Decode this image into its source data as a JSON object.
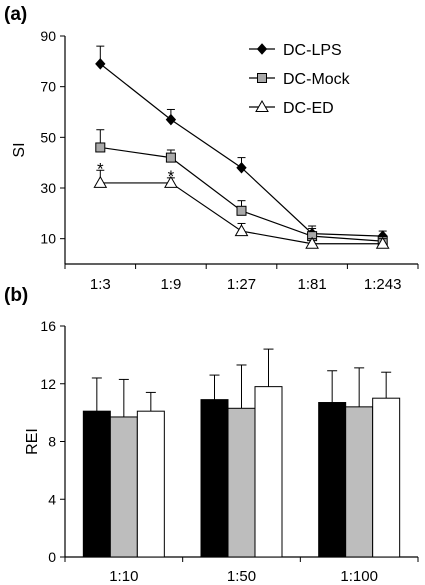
{
  "panels": [
    {
      "label": "(a)"
    },
    {
      "label": "(b)"
    }
  ],
  "chart_data": [
    {
      "type": "line",
      "title": "",
      "xlabel": "",
      "ylabel": "SI",
      "categories": [
        "1:3",
        "1:9",
        "1:27",
        "1:81",
        "1:243"
      ],
      "ylim": [
        0,
        90
      ],
      "yticks": [
        10,
        30,
        50,
        70,
        90
      ],
      "legend_position": "top-right",
      "grid": false,
      "series": [
        {
          "name": "DC-LPS",
          "marker": "diamond",
          "fill": "#000000",
          "values": [
            79,
            57,
            38,
            12,
            11
          ],
          "errors": [
            7,
            4,
            4,
            3,
            2
          ]
        },
        {
          "name": "DC-Mock",
          "marker": "square",
          "fill": "#a9a9a9",
          "values": [
            46,
            42,
            21,
            11,
            9
          ],
          "errors": [
            7,
            3,
            4,
            3,
            2
          ]
        },
        {
          "name": "DC-ED",
          "marker": "triangle",
          "fill": "#ffffff",
          "values": [
            32,
            32,
            13,
            8,
            8
          ],
          "errors": [
            5,
            2,
            3,
            2,
            2
          ]
        }
      ],
      "annotations": [
        {
          "text": "*",
          "category": "1:3",
          "y": 38.5
        },
        {
          "text": "*",
          "category": "1:9",
          "y": 35.5
        }
      ]
    },
    {
      "type": "bar",
      "title": "",
      "xlabel": "",
      "ylabel": "REI",
      "categories": [
        "1:10",
        "1:50",
        "1:100"
      ],
      "ylim": [
        0,
        16
      ],
      "yticks": [
        0,
        4,
        8,
        12,
        16
      ],
      "grid": false,
      "series": [
        {
          "fill": "#000000",
          "values": [
            10.1,
            10.9,
            10.7
          ],
          "errors": [
            2.3,
            1.7,
            2.2
          ]
        },
        {
          "fill": "#bdbdbd",
          "values": [
            9.7,
            10.3,
            10.4
          ],
          "errors": [
            2.6,
            3.0,
            2.7
          ]
        },
        {
          "fill": "#ffffff",
          "values": [
            10.1,
            11.8,
            11.0
          ],
          "errors": [
            1.3,
            2.6,
            1.8
          ]
        }
      ]
    }
  ]
}
